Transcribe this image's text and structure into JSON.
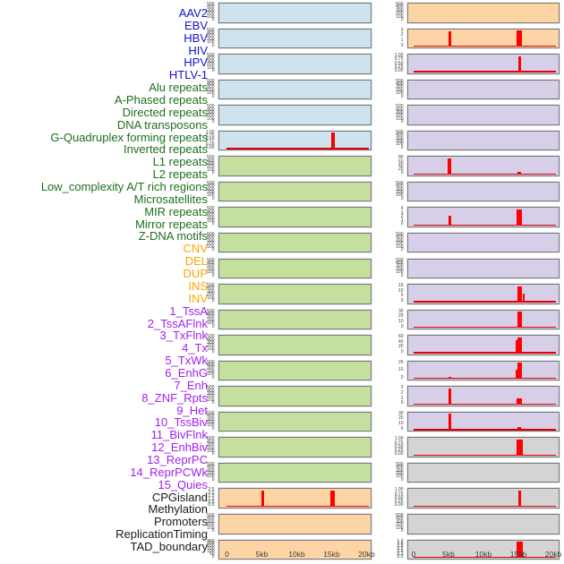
{
  "chart_data": {
    "type": "area",
    "title": "",
    "x": {
      "unit": "kb",
      "ticks": [
        "0",
        "5kb",
        "10kb",
        "15kb",
        "20kb"
      ],
      "values_kb": [
        0,
        5,
        10,
        15,
        20
      ],
      "range_kb": [
        0,
        20
      ]
    },
    "legend_position": "none",
    "grid": false,
    "category_colors": {
      "virus": "#1414cd",
      "repeat": "#1d6f1d",
      "sv": "#ffa500",
      "chromhmm": "#a021f0",
      "other": "#1a1a1a"
    },
    "panel_colors": {
      "virus": "#cfe3ee",
      "repeat": "#c5df9e",
      "sv": "#fdd5a4",
      "chromhmm": "#d7cfe7",
      "other": "#d4d4d4"
    },
    "signal_color": "#ff0000",
    "tracks": [
      {
        "name": "AAV2",
        "category": "virus",
        "column": "left",
        "yticks": [
          "500",
          "400",
          "300",
          "200",
          "100",
          "0"
        ],
        "spikes": [],
        "baseline": false
      },
      {
        "name": "EBV",
        "category": "virus",
        "column": "left",
        "yticks": [
          "500",
          "400",
          "300",
          "200",
          "100",
          "0"
        ],
        "spikes": [],
        "baseline": false
      },
      {
        "name": "HBV",
        "category": "virus",
        "column": "left",
        "yticks": [
          "500",
          "400",
          "300",
          "200",
          "100",
          "0"
        ],
        "spikes": [],
        "baseline": false
      },
      {
        "name": "HIV",
        "category": "virus",
        "column": "left",
        "yticks": [
          "500",
          "400",
          "300",
          "200",
          "100",
          "0"
        ],
        "spikes": [],
        "baseline": false
      },
      {
        "name": "HPV",
        "category": "virus",
        "column": "left",
        "yticks": [
          "500",
          "400",
          "300",
          "200",
          "100",
          "0"
        ],
        "spikes": [],
        "baseline": false
      },
      {
        "name": "HTLV-1",
        "category": "virus",
        "column": "left",
        "yticks": [
          "1.00",
          "0.75",
          "0.50",
          "0.25",
          "0.00"
        ],
        "spikes": [
          {
            "kb": 15,
            "w": 4,
            "h": 0.96
          }
        ],
        "baseline": true
      },
      {
        "name": "Alu repeats",
        "category": "repeat",
        "column": "left",
        "yticks": [
          "500",
          "400",
          "300",
          "200",
          "100",
          "0"
        ],
        "spikes": [],
        "baseline": false
      },
      {
        "name": "A-Phased repeats",
        "category": "repeat",
        "column": "left",
        "yticks": [
          "500",
          "400",
          "300",
          "200",
          "100",
          "0"
        ],
        "spikes": [],
        "baseline": false
      },
      {
        "name": "Directed repeats",
        "category": "repeat",
        "column": "left",
        "yticks": [
          "500",
          "400",
          "300",
          "200",
          "100",
          "0"
        ],
        "spikes": [],
        "baseline": false
      },
      {
        "name": "DNA transposons",
        "category": "repeat",
        "column": "left",
        "yticks": [
          "500",
          "400",
          "300",
          "200",
          "100",
          "0"
        ],
        "spikes": [],
        "baseline": false
      },
      {
        "name": "G-Quadruplex forming repeats",
        "category": "repeat",
        "column": "left",
        "yticks": [
          "500",
          "400",
          "300",
          "200",
          "100",
          "0"
        ],
        "spikes": [],
        "baseline": false
      },
      {
        "name": "Inverted repeats",
        "category": "repeat",
        "column": "left",
        "yticks": [
          "500",
          "400",
          "300",
          "200",
          "100",
          "0"
        ],
        "spikes": [],
        "baseline": false
      },
      {
        "name": "L1 repeats",
        "category": "repeat",
        "column": "left",
        "yticks": [
          "500",
          "400",
          "300",
          "200",
          "100",
          "0"
        ],
        "spikes": [],
        "baseline": false
      },
      {
        "name": "L2 repeats",
        "category": "repeat",
        "column": "left",
        "yticks": [
          "500",
          "400",
          "300",
          "200",
          "100",
          "0"
        ],
        "spikes": [],
        "baseline": false
      },
      {
        "name": "Low_complexity A/T rich regions",
        "category": "repeat",
        "column": "left",
        "yticks": [
          "500",
          "400",
          "300",
          "200",
          "100",
          "0"
        ],
        "spikes": [],
        "baseline": false
      },
      {
        "name": "Microsatellites",
        "category": "repeat",
        "column": "left",
        "yticks": [
          "500",
          "400",
          "300",
          "200",
          "100",
          "0"
        ],
        "spikes": [],
        "baseline": false
      },
      {
        "name": "MIR repeats",
        "category": "repeat",
        "column": "left",
        "yticks": [
          "500",
          "400",
          "300",
          "200",
          "100",
          "0"
        ],
        "spikes": [],
        "baseline": false
      },
      {
        "name": "Mirror repeats",
        "category": "repeat",
        "column": "left",
        "yticks": [
          "500",
          "400",
          "300",
          "200",
          "100",
          "0"
        ],
        "spikes": [],
        "baseline": false
      },
      {
        "name": "Z-DNA motifs",
        "category": "repeat",
        "column": "left",
        "yticks": [
          "500",
          "400",
          "300",
          "200",
          "100",
          "0"
        ],
        "spikes": [],
        "baseline": false
      },
      {
        "name": "CNV",
        "category": "sv",
        "column": "left",
        "yticks": [
          "2.5",
          "2.0",
          "1.5",
          "1.0",
          "0.5",
          "0.0"
        ],
        "spikes": [
          {
            "kb": 5,
            "w": 3,
            "h": 0.96
          },
          {
            "kb": 15,
            "w": 5,
            "h": 0.96
          }
        ],
        "baseline": true
      },
      {
        "name": "DEL",
        "category": "sv",
        "column": "left",
        "yticks": [
          "500",
          "400",
          "300",
          "200",
          "100",
          "0"
        ],
        "spikes": [],
        "baseline": false
      },
      {
        "name": "DUP",
        "category": "sv",
        "column": "left",
        "yticks": [
          "300",
          "250",
          "200",
          "150",
          "100",
          "50",
          "0"
        ],
        "spikes": [],
        "baseline": false
      },
      {
        "name": "INS",
        "category": "sv",
        "column": "right",
        "yticks": [
          "500",
          "400",
          "300",
          "200",
          "100",
          "0"
        ],
        "spikes": [],
        "baseline": false
      },
      {
        "name": "INV",
        "category": "sv",
        "column": "right",
        "yticks": [
          "3",
          "2",
          "1",
          "0"
        ],
        "spikes": [
          {
            "kb": 5,
            "w": 3,
            "h": 0.93
          },
          {
            "kb": 15,
            "w": 6,
            "h": 0.96
          }
        ],
        "baseline": true
      },
      {
        "name": "1_TssA",
        "category": "chromhmm",
        "column": "right",
        "yticks": [
          "1.00",
          "0.75",
          "0.50",
          "0.25",
          "0.00"
        ],
        "spikes": [
          {
            "kb": 15,
            "w": 3,
            "h": 0.96
          }
        ],
        "baseline": true
      },
      {
        "name": "2_TssAFlnk",
        "category": "chromhmm",
        "column": "right",
        "yticks": [
          "500",
          "400",
          "300",
          "200",
          "100",
          "0"
        ],
        "spikes": [],
        "baseline": false
      },
      {
        "name": "3_TxFlnk",
        "category": "chromhmm",
        "column": "right",
        "yticks": [
          "500",
          "400",
          "300",
          "200",
          "100",
          "0"
        ],
        "spikes": [],
        "baseline": false
      },
      {
        "name": "4_Tx",
        "category": "chromhmm",
        "column": "right",
        "yticks": [
          "500",
          "400",
          "300",
          "200",
          "100",
          "0"
        ],
        "spikes": [],
        "baseline": false
      },
      {
        "name": "5_TxWk",
        "category": "chromhmm",
        "column": "right",
        "yticks": [
          "80",
          "60",
          "40",
          "20",
          "0"
        ],
        "spikes": [
          {
            "kb": 5,
            "w": 4,
            "h": 0.96
          },
          {
            "kb": 15,
            "w": 4,
            "h": 0.1
          }
        ],
        "baseline": true
      },
      {
        "name": "6_EnhG",
        "category": "chromhmm",
        "column": "right",
        "yticks": [
          "500",
          "400",
          "300",
          "200",
          "100",
          "0"
        ],
        "spikes": [],
        "baseline": false
      },
      {
        "name": "7_Enh",
        "category": "chromhmm",
        "column": "right",
        "yticks": [
          "4",
          "3",
          "2",
          "1",
          "0"
        ],
        "spikes": [
          {
            "kb": 5,
            "w": 3,
            "h": 0.55
          },
          {
            "kb": 15,
            "w": 6,
            "h": 0.96
          }
        ],
        "baseline": true
      },
      {
        "name": "8_ZNF_Rpts",
        "category": "chromhmm",
        "column": "right",
        "yticks": [
          "500",
          "400",
          "300",
          "200",
          "100",
          "0"
        ],
        "spikes": [],
        "baseline": false
      },
      {
        "name": "9_Het",
        "category": "chromhmm",
        "column": "right",
        "yticks": [
          "500",
          "400",
          "300",
          "200",
          "100",
          "0"
        ],
        "spikes": [],
        "baseline": false
      },
      {
        "name": "10_TssBiv",
        "category": "chromhmm",
        "column": "right",
        "yticks": [
          "15",
          "10",
          "5",
          "0"
        ],
        "spikes": [
          {
            "kb": 15,
            "w": 5,
            "h": 0.96
          },
          {
            "kb": 15.7,
            "w": 2,
            "h": 0.5
          }
        ],
        "baseline": true
      },
      {
        "name": "11_BivFlnk",
        "category": "chromhmm",
        "column": "right",
        "yticks": [
          "30",
          "20",
          "10",
          "0"
        ],
        "spikes": [
          {
            "kb": 15,
            "w": 5,
            "h": 0.96
          }
        ],
        "baseline": true
      },
      {
        "name": "12_EnhBiv",
        "category": "chromhmm",
        "column": "right",
        "yticks": [
          "60",
          "40",
          "20",
          "0"
        ],
        "spikes": [
          {
            "kb": 14.6,
            "w": 2,
            "h": 0.8
          },
          {
            "kb": 15,
            "w": 5,
            "h": 0.96
          }
        ],
        "baseline": true
      },
      {
        "name": "13_ReprPC",
        "category": "chromhmm",
        "column": "right",
        "yticks": [
          "20",
          "10",
          "0"
        ],
        "spikes": [
          {
            "kb": 5,
            "w": 3,
            "h": 0.08
          },
          {
            "kb": 14.6,
            "w": 2,
            "h": 0.55
          },
          {
            "kb": 15,
            "w": 5,
            "h": 0.96
          }
        ],
        "baseline": true
      },
      {
        "name": "14_ReprPCWk",
        "category": "chromhmm",
        "column": "right",
        "yticks": [
          "3",
          "2",
          "1",
          "0"
        ],
        "spikes": [
          {
            "kb": 5,
            "w": 3,
            "h": 0.96
          },
          {
            "kb": 15,
            "w": 6,
            "h": 0.33
          }
        ],
        "baseline": true
      },
      {
        "name": "15_Quies",
        "category": "chromhmm",
        "column": "right",
        "yticks": [
          "30",
          "20",
          "10",
          "0"
        ],
        "spikes": [
          {
            "kb": 5,
            "w": 3,
            "h": 0.96
          },
          {
            "kb": 15,
            "w": 4,
            "h": 0.12
          }
        ],
        "baseline": true
      },
      {
        "name": "CPGisland",
        "category": "other",
        "column": "right",
        "yticks": [
          "1.00",
          "0.75",
          "0.50",
          "0.25",
          "0.00"
        ],
        "spikes": [
          {
            "kb": 15,
            "w": 7,
            "h": 0.96
          }
        ],
        "baseline": true
      },
      {
        "name": "Methylation",
        "category": "other",
        "column": "right",
        "yticks": [
          "500",
          "400",
          "300",
          "200",
          "100",
          "0"
        ],
        "spikes": [],
        "baseline": false
      },
      {
        "name": "Promoters",
        "category": "other",
        "column": "right",
        "yticks": [
          "1.00",
          "0.75",
          "0.50",
          "0.25",
          "0.00"
        ],
        "spikes": [
          {
            "kb": 15,
            "w": 3,
            "h": 0.96
          }
        ],
        "baseline": true
      },
      {
        "name": "ReplicationTiming",
        "category": "other",
        "column": "right",
        "yticks": [
          "500",
          "400",
          "300",
          "200",
          "100",
          "0"
        ],
        "spikes": [],
        "baseline": false
      },
      {
        "name": "TAD_boundary",
        "category": "other",
        "column": "right",
        "yticks": [
          "1.2",
          "1.0",
          "0.8",
          "0.6",
          "0.4",
          "0.2",
          "0.0"
        ],
        "spikes": [
          {
            "kb": 15,
            "w": 7,
            "h": 0.96
          }
        ],
        "baseline": true
      }
    ]
  }
}
